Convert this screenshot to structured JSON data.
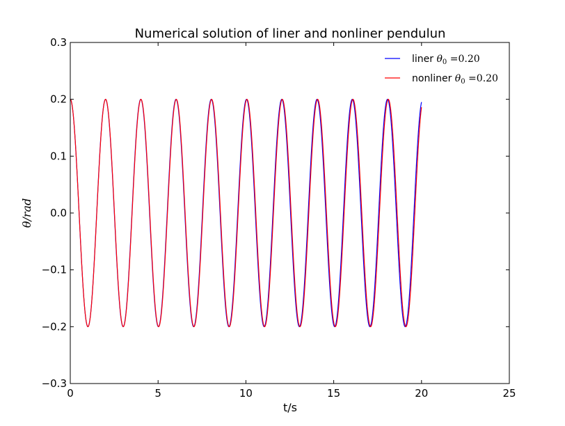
{
  "chart_data": {
    "type": "line",
    "title": "Numerical solution of liner and nonliner pendulun",
    "xlabel": "t/s",
    "ylabel": "θ/rad",
    "xlim": [
      0,
      25
    ],
    "ylim": [
      -0.3,
      0.3
    ],
    "xticks": [
      0,
      5,
      10,
      15,
      20,
      25
    ],
    "yticks": [
      -0.3,
      -0.2,
      -0.1,
      0.0,
      0.1,
      0.2,
      0.3
    ],
    "xtick_labels": [
      "0",
      "5",
      "10",
      "15",
      "20",
      "25"
    ],
    "ytick_labels": [
      "−0.3",
      "−0.2",
      "−0.1",
      "0.0",
      "0.1",
      "0.2",
      "0.3"
    ],
    "grid": false,
    "legend": "top-right",
    "series": [
      {
        "name": "liner θ0 =0.20",
        "legend_prefix": "liner ",
        "legend_symbol": "θ",
        "legend_subscript": "0",
        "legend_suffix": " =0.20",
        "color": "#0000ff",
        "amplitude": 0.2,
        "period": 2.007,
        "t_range": [
          0,
          20
        ]
      },
      {
        "name": "nonliner θ0 =0.20",
        "legend_prefix": "nonliner ",
        "legend_symbol": "θ",
        "legend_subscript": "0",
        "legend_suffix": " =0.20",
        "color": "#ff0000",
        "amplitude": 0.2,
        "period": 2.012,
        "t_range": [
          0,
          20
        ]
      }
    ]
  }
}
